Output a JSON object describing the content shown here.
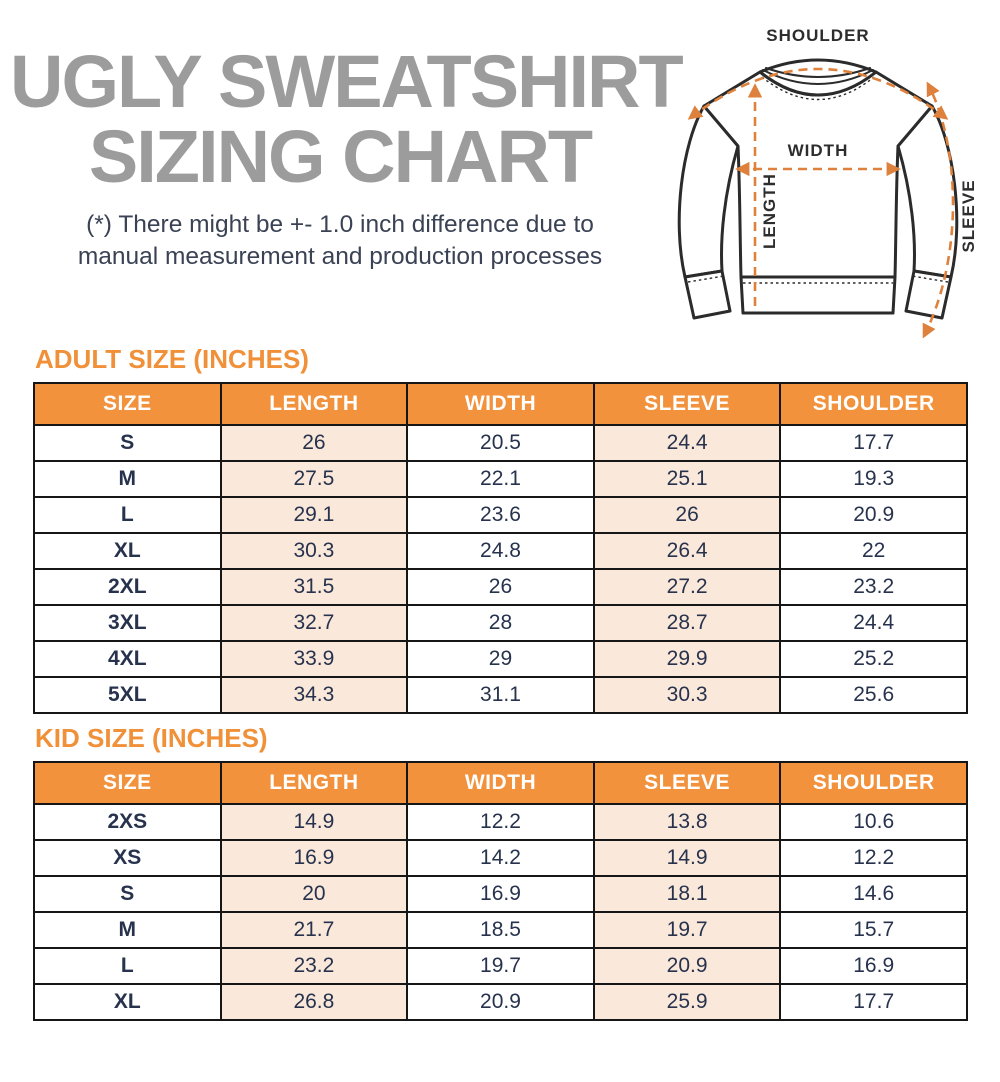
{
  "header": {
    "title_line1": "UGLY SWEATSHIRT",
    "title_line2": "SIZING CHART",
    "note_line1": "(*) There might be +- 1.0 inch difference due to",
    "note_line2": "manual measurement and production processes"
  },
  "diagram": {
    "shoulder_label": "SHOULDER",
    "width_label": "WIDTH",
    "length_label": "LENGTH",
    "sleeve_label": "SLEEVE"
  },
  "adult_table": {
    "heading": "ADULT SIZE (INCHES)",
    "columns": [
      "SIZE",
      "LENGTH",
      "WIDTH",
      "SLEEVE",
      "SHOULDER"
    ],
    "rows": [
      {
        "size": "S",
        "length": "26",
        "width": "20.5",
        "sleeve": "24.4",
        "shoulder": "17.7"
      },
      {
        "size": "M",
        "length": "27.5",
        "width": "22.1",
        "sleeve": "25.1",
        "shoulder": "19.3"
      },
      {
        "size": "L",
        "length": "29.1",
        "width": "23.6",
        "sleeve": "26",
        "shoulder": "20.9"
      },
      {
        "size": "XL",
        "length": "30.3",
        "width": "24.8",
        "sleeve": "26.4",
        "shoulder": "22"
      },
      {
        "size": "2XL",
        "length": "31.5",
        "width": "26",
        "sleeve": "27.2",
        "shoulder": "23.2"
      },
      {
        "size": "3XL",
        "length": "32.7",
        "width": "28",
        "sleeve": "28.7",
        "shoulder": "24.4"
      },
      {
        "size": "4XL",
        "length": "33.9",
        "width": "29",
        "sleeve": "29.9",
        "shoulder": "25.2"
      },
      {
        "size": "5XL",
        "length": "34.3",
        "width": "31.1",
        "sleeve": "30.3",
        "shoulder": "25.6"
      }
    ]
  },
  "kid_table": {
    "heading": "KID SIZE (INCHES)",
    "columns": [
      "SIZE",
      "LENGTH",
      "WIDTH",
      "SLEEVE",
      "SHOULDER"
    ],
    "rows": [
      {
        "size": "2XS",
        "length": "14.9",
        "width": "12.2",
        "sleeve": "13.8",
        "shoulder": "10.6"
      },
      {
        "size": "XS",
        "length": "16.9",
        "width": "14.2",
        "sleeve": "14.9",
        "shoulder": "12.2"
      },
      {
        "size": "S",
        "length": "20",
        "width": "16.9",
        "sleeve": "18.1",
        "shoulder": "14.6"
      },
      {
        "size": "M",
        "length": "21.7",
        "width": "18.5",
        "sleeve": "19.7",
        "shoulder": "15.7"
      },
      {
        "size": "L",
        "length": "23.2",
        "width": "19.7",
        "sleeve": "20.9",
        "shoulder": "16.9"
      },
      {
        "size": "XL",
        "length": "26.8",
        "width": "20.9",
        "sleeve": "25.9",
        "shoulder": "17.7"
      }
    ]
  },
  "colors": {
    "header_orange": "#f2923d",
    "heading_text_orange": "#f0913a",
    "peach_cell": "#fae8db",
    "title_gray": "#9c9c9c",
    "body_text_navy": "#27324d",
    "table_border": "#161616",
    "diagram_arrow_orange": "#dd813d",
    "diagram_line": "#2b2b2b"
  },
  "chart_data": [
    {
      "type": "table",
      "title": "ADULT SIZE (INCHES)",
      "columns": [
        "SIZE",
        "LENGTH",
        "WIDTH",
        "SLEEVE",
        "SHOULDER"
      ],
      "rows": [
        [
          "S",
          26,
          20.5,
          24.4,
          17.7
        ],
        [
          "M",
          27.5,
          22.1,
          25.1,
          19.3
        ],
        [
          "L",
          29.1,
          23.6,
          26,
          20.9
        ],
        [
          "XL",
          30.3,
          24.8,
          26.4,
          22
        ],
        [
          "2XL",
          31.5,
          26,
          27.2,
          23.2
        ],
        [
          "3XL",
          32.7,
          28,
          28.7,
          24.4
        ],
        [
          "4XL",
          33.9,
          29,
          29.9,
          25.2
        ],
        [
          "5XL",
          34.3,
          31.1,
          30.3,
          25.6
        ]
      ]
    },
    {
      "type": "table",
      "title": "KID SIZE (INCHES)",
      "columns": [
        "SIZE",
        "LENGTH",
        "WIDTH",
        "SLEEVE",
        "SHOULDER"
      ],
      "rows": [
        [
          "2XS",
          14.9,
          12.2,
          13.8,
          10.6
        ],
        [
          "XS",
          16.9,
          14.2,
          14.9,
          12.2
        ],
        [
          "S",
          20,
          16.9,
          18.1,
          14.6
        ],
        [
          "M",
          21.7,
          18.5,
          19.7,
          15.7
        ],
        [
          "L",
          23.2,
          19.7,
          20.9,
          16.9
        ],
        [
          "XL",
          26.8,
          20.9,
          25.9,
          17.7
        ]
      ]
    }
  ]
}
